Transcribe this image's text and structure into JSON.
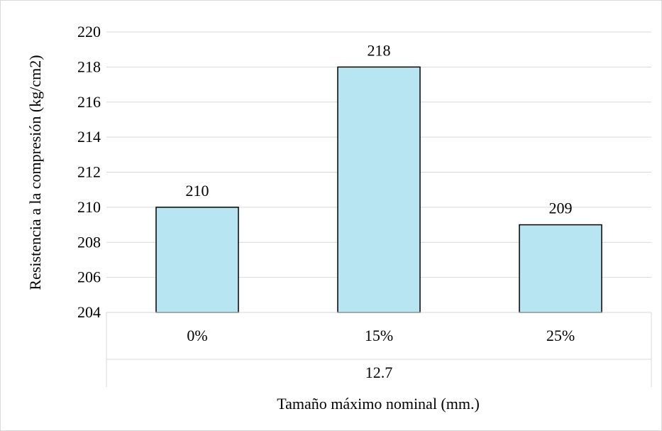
{
  "chart_data": {
    "type": "bar",
    "categories": [
      "0%",
      "15%",
      "25%"
    ],
    "group_label": "12.7",
    "values": [
      210,
      218,
      209
    ],
    "data_labels": [
      "210",
      "218",
      "209"
    ],
    "xlabel": "Tamaño máximo nominal (mm.)",
    "ylabel": "Resistencia a la compresión (kg/cm2)",
    "ylim": [
      204,
      220
    ],
    "yticks": [
      "204",
      "206",
      "208",
      "210",
      "212",
      "214",
      "216",
      "218",
      "220"
    ],
    "grid": true,
    "legend": "none"
  },
  "colors": {
    "bar_fill": "#b7e6f2",
    "bar_stroke": "#000000",
    "grid": "#d9d9d9",
    "frame": "#d9d9d9"
  }
}
